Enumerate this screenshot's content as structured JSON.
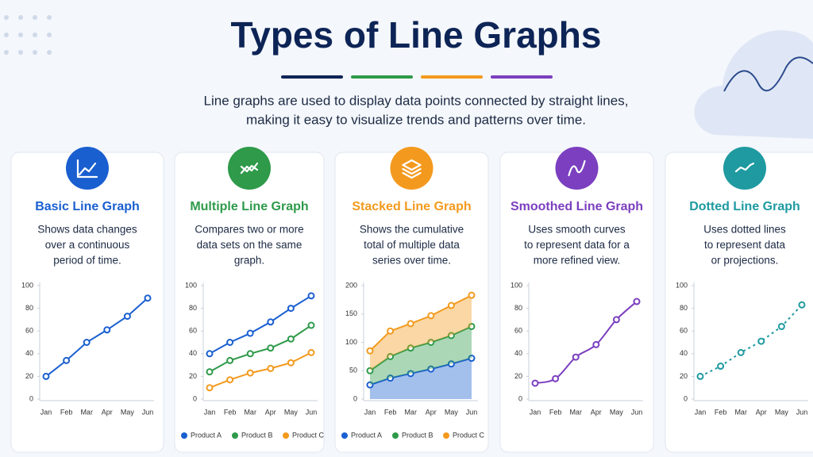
{
  "header": {
    "title": "Types of Line Graphs",
    "subtitle": [
      "Line graphs are used to display data points connected by straight lines,",
      "making it easy to visualize trends and patterns over time."
    ]
  },
  "chart_data": [
    {
      "type": "line",
      "title": "Basic Line Graph",
      "subtitle": [
        "Shows data changes",
        "over a continuous",
        "period of time."
      ],
      "color": "#1a5fd0",
      "categories": [
        "Jan",
        "Feb",
        "Mar",
        "Apr",
        "May",
        "Jun"
      ],
      "values": [
        20,
        34,
        50,
        61,
        73,
        89
      ],
      "ylim": [
        0,
        100
      ],
      "yticks": [
        0,
        20,
        40,
        60,
        80,
        100
      ]
    },
    {
      "type": "line",
      "title": "Multiple Line Graph",
      "subtitle": [
        "Compares two or more",
        "data sets on the same",
        "graph."
      ],
      "color": "#2e9a4a",
      "categories": [
        "Jan",
        "Feb",
        "Mar",
        "Apr",
        "May",
        "Jun"
      ],
      "series": [
        {
          "name": "Product A",
          "color": "#1a5fd0",
          "values": [
            40,
            50,
            58,
            68,
            80,
            91
          ]
        },
        {
          "name": "Product B",
          "color": "#2e9a4a",
          "values": [
            24,
            34,
            40,
            45,
            53,
            65
          ]
        },
        {
          "name": "Product C",
          "color": "#f39a1e",
          "values": [
            10,
            17,
            23,
            27,
            32,
            41
          ]
        }
      ],
      "ylim": [
        0,
        100
      ],
      "yticks": [
        0,
        20,
        40,
        60,
        80,
        100
      ]
    },
    {
      "type": "stacked-area",
      "title": "Stacked Line Graph",
      "subtitle": [
        "Shows the cumulative",
        "total of multiple data",
        "series over time."
      ],
      "color": "#f39a1e",
      "categories": [
        "Jan",
        "Feb",
        "Mar",
        "Apr",
        "May",
        "Jun"
      ],
      "series": [
        {
          "name": "Product A",
          "color": "#1a5fd0",
          "values": [
            25,
            37,
            45,
            53,
            62,
            72
          ]
        },
        {
          "name": "Product B",
          "color": "#2e9a4a",
          "values": [
            25,
            38,
            45,
            47,
            50,
            56
          ]
        },
        {
          "name": "Product C",
          "color": "#f39a1e",
          "values": [
            35,
            45,
            43,
            47,
            53,
            55
          ]
        }
      ],
      "ylim": [
        0,
        200
      ],
      "yticks": [
        0,
        50,
        100,
        150,
        200
      ]
    },
    {
      "type": "line",
      "smooth": true,
      "title": "Smoothed Line Graph",
      "subtitle": [
        "Uses smooth curves",
        "to represent data for a",
        "more refined view."
      ],
      "color": "#7b3fbf",
      "categories": [
        "Jan",
        "Feb",
        "Mar",
        "Apr",
        "May",
        "Jun"
      ],
      "values": [
        14,
        18,
        37,
        48,
        70,
        86
      ],
      "ylim": [
        0,
        100
      ],
      "yticks": [
        0,
        20,
        40,
        60,
        80,
        100
      ]
    },
    {
      "type": "line",
      "dashed": true,
      "title": "Dotted Line Graph",
      "subtitle": [
        "Uses dotted lines",
        "to represent data",
        "or projections."
      ],
      "color": "#1e9aa0",
      "categories": [
        "Jan",
        "Feb",
        "Mar",
        "Apr",
        "May",
        "Jun"
      ],
      "values": [
        20,
        29,
        41,
        51,
        64,
        83
      ],
      "ylim": [
        0,
        100
      ],
      "yticks": [
        0,
        20,
        40,
        60,
        80,
        100
      ]
    }
  ]
}
